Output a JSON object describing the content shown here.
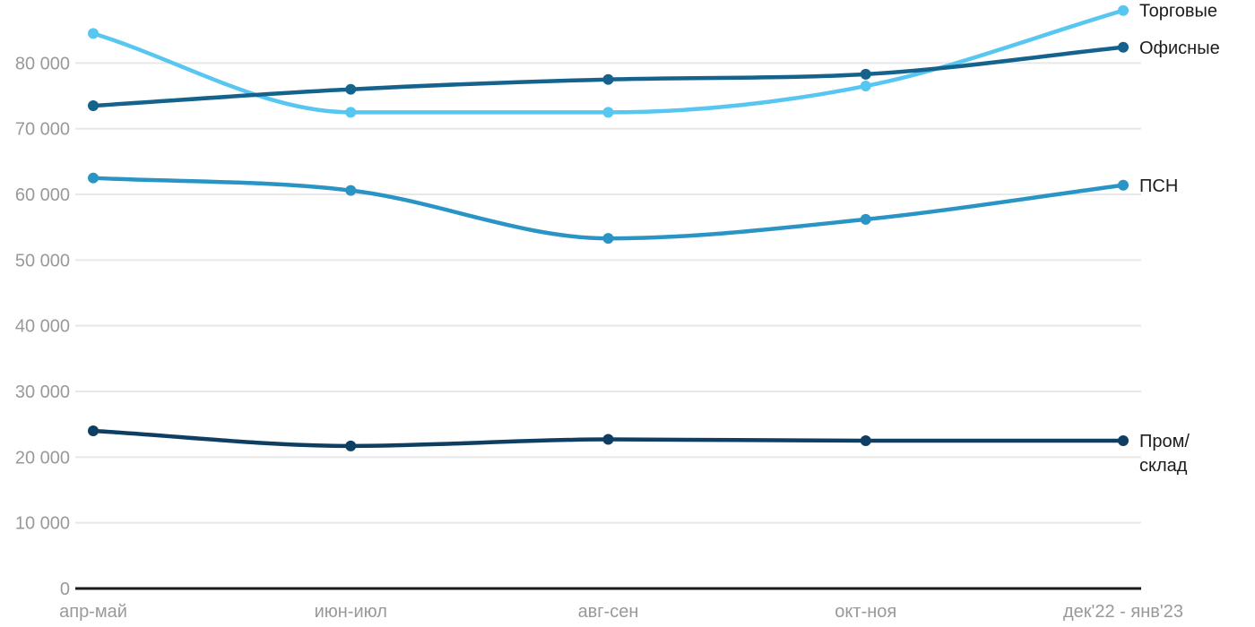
{
  "chart_data": {
    "type": "line",
    "title": "",
    "xlabel": "",
    "ylabel": "",
    "categories": [
      "апр-май",
      "июн-июл",
      "авг-сен",
      "окт-ноя",
      "дек'22 - янв'23"
    ],
    "series": [
      {
        "name": "Торговые",
        "label_lines": [
          "Торговые"
        ],
        "color": "#57c6f0",
        "values": [
          84500,
          72500,
          72500,
          76500,
          88000
        ]
      },
      {
        "name": "Офисные",
        "label_lines": [
          "Офисные"
        ],
        "color": "#15638d",
        "values": [
          73500,
          76000,
          77500,
          78300,
          82400
        ]
      },
      {
        "name": "ПСН",
        "label_lines": [
          "ПСН"
        ],
        "color": "#2a95c5",
        "values": [
          62500,
          60600,
          53300,
          56200,
          61400
        ]
      },
      {
        "name": "Пром/склад",
        "label_lines": [
          "Пром/",
          "склад"
        ],
        "color": "#0e3f63",
        "values": [
          24000,
          21700,
          22700,
          22500,
          22500
        ]
      }
    ],
    "y_axis": {
      "ticks": [
        0,
        10000,
        20000,
        30000,
        40000,
        50000,
        60000,
        70000,
        80000
      ],
      "tick_labels": [
        "0",
        "10 000",
        "20 000",
        "30 000",
        "40 000",
        "50 000",
        "60 000",
        "70 000",
        "80 000"
      ],
      "ylim": [
        0,
        89500
      ],
      "grid": true
    },
    "legend_position": "right-of-last-point",
    "colors": {
      "grid": "#e8e8e8",
      "axis_line": "#1a1a1a",
      "tick_text": "#999999",
      "series_label_text": "#1c1c1c",
      "background": "#ffffff"
    }
  }
}
